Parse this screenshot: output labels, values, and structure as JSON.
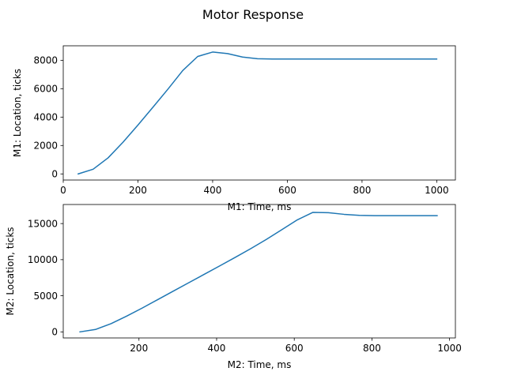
{
  "figure": {
    "title": "Motor Response"
  },
  "chart_data": [
    {
      "type": "line",
      "title": "",
      "xlabel": "M1: Time, ms",
      "ylabel": "M1: Location, ticks",
      "xlim": [
        0,
        1050
      ],
      "ylim": [
        -430,
        9020
      ],
      "xticks": [
        0,
        200,
        400,
        600,
        800,
        1000
      ],
      "yticks": [
        0,
        2000,
        4000,
        6000,
        8000
      ],
      "grid": false,
      "color": "#1f77b4",
      "series": [
        {
          "x": [
            40,
            80,
            120,
            160,
            200,
            240,
            280,
            320,
            360,
            400,
            440,
            480,
            520,
            560,
            600,
            640,
            680,
            720,
            760,
            800,
            840,
            880,
            920,
            960,
            1000
          ],
          "values": [
            0,
            330,
            1130,
            2230,
            3440,
            4690,
            5960,
            7280,
            8270,
            8580,
            8470,
            8230,
            8110,
            8090,
            8090,
            8090,
            8090,
            8090,
            8090,
            8090,
            8090,
            8090,
            8090,
            8090,
            8090
          ]
        }
      ]
    },
    {
      "type": "line",
      "title": "",
      "xlabel": "M2: Time, ms",
      "ylabel": "M2: Location, ticks",
      "xlim": [
        5,
        1015
      ],
      "ylim": [
        -840,
        17640
      ],
      "xticks": [
        200,
        400,
        600,
        800,
        1000
      ],
      "yticks": [
        0,
        5000,
        10000,
        15000
      ],
      "grid": false,
      "color": "#1f77b4",
      "series": [
        {
          "x": [
            48,
            88,
            128,
            168,
            208,
            248,
            288,
            328,
            368,
            408,
            448,
            488,
            528,
            568,
            608,
            648,
            688,
            728,
            768,
            808,
            848,
            888,
            928,
            968
          ],
          "values": [
            0,
            330,
            1130,
            2170,
            3290,
            4460,
            5630,
            6800,
            7970,
            9140,
            10320,
            11530,
            12800,
            14150,
            15520,
            16550,
            16500,
            16280,
            16140,
            16100,
            16100,
            16100,
            16100,
            16100
          ]
        }
      ]
    }
  ]
}
